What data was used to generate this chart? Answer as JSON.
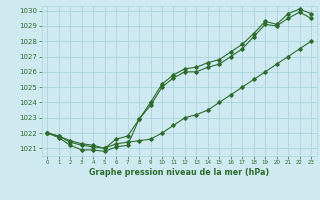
{
  "title": "Graphe pression niveau de la mer (hPa)",
  "background_color": "#ceeaf0",
  "grid_color": "#aad4dc",
  "line_color": "#2d6b2d",
  "xlim": [
    -0.5,
    23.5
  ],
  "ylim": [
    1020.5,
    1030.3
  ],
  "yticks": [
    1021,
    1022,
    1023,
    1024,
    1025,
    1026,
    1027,
    1028,
    1029,
    1030
  ],
  "xticks": [
    0,
    1,
    2,
    3,
    4,
    5,
    6,
    7,
    8,
    9,
    10,
    11,
    12,
    13,
    14,
    15,
    16,
    17,
    18,
    19,
    20,
    21,
    22,
    23
  ],
  "series1_x": [
    0,
    1,
    2,
    3,
    4,
    5,
    6,
    7,
    8,
    9,
    10,
    11,
    12,
    13,
    14,
    15,
    16,
    17,
    18,
    19,
    20,
    21,
    22,
    23
  ],
  "series1_y": [
    1022.0,
    1021.7,
    1021.2,
    1020.9,
    1020.9,
    1020.8,
    1021.1,
    1021.2,
    1022.9,
    1023.8,
    1025.0,
    1025.6,
    1026.0,
    1026.0,
    1026.3,
    1026.5,
    1027.0,
    1027.5,
    1028.3,
    1029.1,
    1029.0,
    1029.5,
    1029.9,
    1029.5
  ],
  "series2_x": [
    0,
    1,
    2,
    3,
    4,
    5,
    6,
    7,
    8,
    9,
    10,
    11,
    12,
    13,
    14,
    15,
    16,
    17,
    18,
    19,
    20,
    21,
    22,
    23
  ],
  "series2_y": [
    1022.0,
    1021.8,
    1021.4,
    1021.2,
    1021.1,
    1021.0,
    1021.3,
    1021.4,
    1021.5,
    1021.6,
    1022.0,
    1022.5,
    1023.0,
    1023.2,
    1023.5,
    1024.0,
    1024.5,
    1025.0,
    1025.5,
    1026.0,
    1026.5,
    1027.0,
    1027.5,
    1028.0
  ],
  "series3_x": [
    0,
    1,
    2,
    3,
    4,
    5,
    6,
    7,
    8,
    9,
    10,
    11,
    12,
    13,
    14,
    15,
    16,
    17,
    18,
    19,
    20,
    21,
    22,
    23
  ],
  "series3_y": [
    1022.0,
    1021.8,
    1021.5,
    1021.3,
    1021.2,
    1021.0,
    1021.6,
    1021.8,
    1022.9,
    1024.0,
    1025.2,
    1025.8,
    1026.2,
    1026.3,
    1026.6,
    1026.8,
    1027.3,
    1027.8,
    1028.5,
    1029.3,
    1029.1,
    1029.8,
    1030.1,
    1029.8
  ]
}
